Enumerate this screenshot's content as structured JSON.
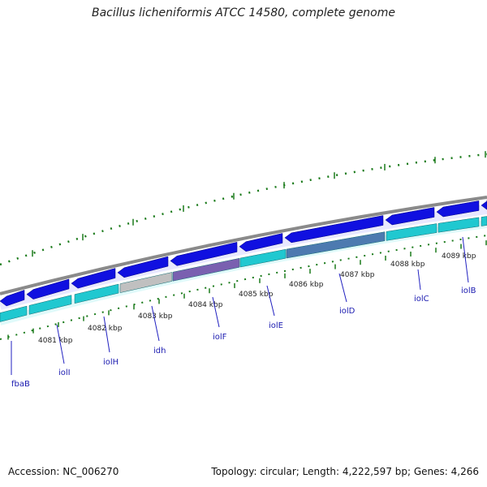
{
  "header": {
    "title": "Bacillus licheniformis ATCC 14580, complete genome"
  },
  "footer": {
    "accession": "Accession: NC_006270",
    "summary": "Topology: circular; Length: 4,222,597 bp; Genes: 4,266"
  },
  "colors": {
    "backbone": "#8a8a8a",
    "forward_gene": "#1010e0",
    "reverse_gene": "#20c8d0",
    "rna_gene": "#c0c0c0",
    "ticks": "#1a7a1a",
    "label_line": "#2020c0"
  },
  "scale_labels": [
    "4081 kbp",
    "4082 kbp",
    "4083 kbp",
    "4084 kbp",
    "4085 kbp",
    "4086 kbp",
    "4087 kbp",
    "4088 kbp",
    "4089 kbp"
  ],
  "genes": [
    "fbaB",
    "iolI",
    "iolH",
    "idh",
    "iolF",
    "iolE",
    "iolD",
    "iolC",
    "iolB"
  ]
}
